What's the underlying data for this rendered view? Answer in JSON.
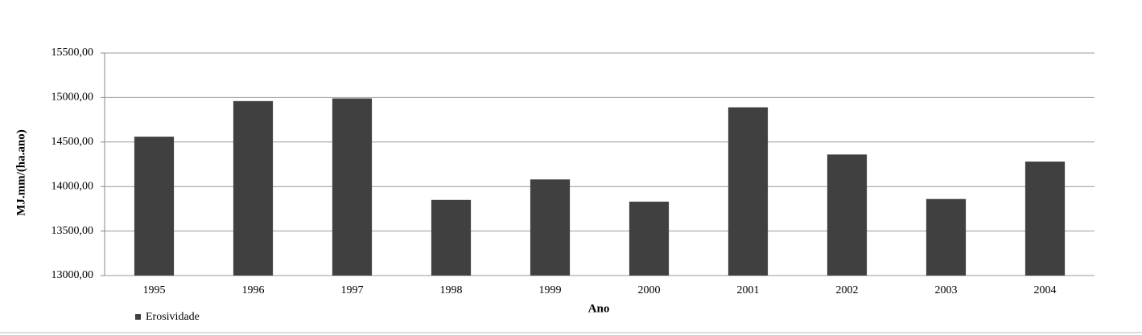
{
  "chart_data": {
    "type": "bar",
    "x_label": "Ano",
    "y_label": "MJ.mm/(ha.ano)",
    "categories": [
      "1995",
      "1996",
      "1997",
      "1998",
      "1999",
      "2000",
      "2001",
      "2002",
      "2003",
      "2004"
    ],
    "series": [
      {
        "name": "Erosividade",
        "color": "#404040",
        "values": [
          14560,
          14960,
          14990,
          13850,
          14080,
          13830,
          14890,
          14360,
          13860,
          14280
        ]
      }
    ],
    "ylim": [
      13000,
      15500
    ],
    "yticks": [
      {
        "value": 13000,
        "label": "13000,00"
      },
      {
        "value": 13500,
        "label": "13500,00"
      },
      {
        "value": 14000,
        "label": "14000,00"
      },
      {
        "value": 14500,
        "label": "14500,00"
      },
      {
        "value": 15000,
        "label": "15000,00"
      },
      {
        "value": 15500,
        "label": "15500,00"
      }
    ],
    "grid": true,
    "legend": "bottom-left"
  }
}
